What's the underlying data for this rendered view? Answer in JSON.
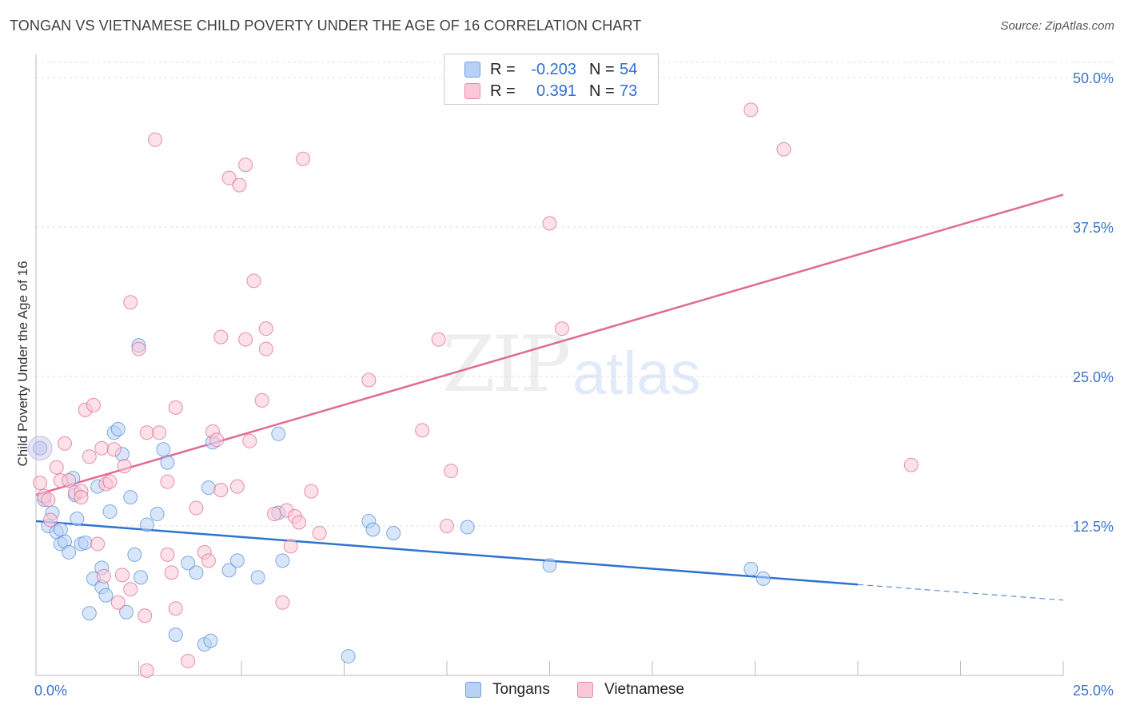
{
  "title": "TONGAN VS VIETNAMESE CHILD POVERTY UNDER THE AGE OF 16 CORRELATION CHART",
  "source": "Source: ZipAtlas.com",
  "watermark": {
    "part1": "ZIP",
    "part2": "atlas"
  },
  "legend": {
    "rows": [
      {
        "r_label": "R =",
        "r_value": "-0.203",
        "n_label": "N =",
        "n_value": "54",
        "fill": "#b8d2f5",
        "stroke": "#6f9fe0"
      },
      {
        "r_label": "R =",
        "r_value": "0.391",
        "n_label": "N =",
        "n_value": "73",
        "fill": "#f9c9d7",
        "stroke": "#e98aa8"
      }
    ]
  },
  "bottom_legend": {
    "tongans": "Tongans",
    "vietnamese": "Vietnamese"
  },
  "chart_data": {
    "type": "scatter",
    "xlabel": "",
    "ylabel": "Child Poverty Under the Age of 16",
    "xlim": [
      0,
      25
    ],
    "ylim": [
      0,
      50
    ],
    "x_tick_labels": [
      {
        "value": 0,
        "label": "0.0%"
      },
      {
        "value": 25,
        "label": "25.0%"
      }
    ],
    "y_tick_labels": [
      {
        "value": 12.5,
        "label": "12.5%"
      },
      {
        "value": 25,
        "label": "25.0%"
      },
      {
        "value": 37.5,
        "label": "37.5%"
      },
      {
        "value": 50,
        "label": "50.0%"
      }
    ],
    "grid": true,
    "legend_placement": "top-center",
    "series": [
      {
        "name": "Tongans",
        "color": "#5b8fd8",
        "fill": "#b8d2f5",
        "points": [
          [
            0.1,
            19.0
          ],
          [
            0.2,
            14.7
          ],
          [
            0.3,
            12.5
          ],
          [
            0.4,
            13.6
          ],
          [
            0.5,
            12.0
          ],
          [
            0.6,
            11.0
          ],
          [
            0.7,
            11.2
          ],
          [
            0.8,
            10.3
          ],
          [
            0.9,
            16.5
          ],
          [
            0.95,
            15.1
          ],
          [
            1.0,
            13.1
          ],
          [
            1.1,
            11.0
          ],
          [
            1.2,
            11.1
          ],
          [
            1.3,
            5.2
          ],
          [
            1.4,
            8.1
          ],
          [
            1.5,
            15.8
          ],
          [
            1.6,
            7.4
          ],
          [
            1.6,
            9.0
          ],
          [
            1.7,
            6.7
          ],
          [
            1.8,
            13.7
          ],
          [
            1.9,
            20.3
          ],
          [
            2.0,
            20.6
          ],
          [
            2.1,
            18.5
          ],
          [
            2.2,
            5.3
          ],
          [
            2.3,
            14.9
          ],
          [
            2.4,
            10.1
          ],
          [
            2.5,
            27.6
          ],
          [
            2.55,
            8.2
          ],
          [
            2.7,
            12.6
          ],
          [
            2.95,
            13.5
          ],
          [
            3.1,
            18.9
          ],
          [
            3.2,
            17.8
          ],
          [
            3.4,
            3.4
          ],
          [
            3.7,
            9.4
          ],
          [
            3.9,
            8.6
          ],
          [
            4.1,
            2.6
          ],
          [
            4.2,
            15.7
          ],
          [
            4.25,
            2.9
          ],
          [
            4.3,
            19.5
          ],
          [
            4.7,
            8.8
          ],
          [
            4.9,
            9.6
          ],
          [
            5.4,
            8.2
          ],
          [
            5.9,
            20.2
          ],
          [
            5.9,
            13.6
          ],
          [
            6.0,
            9.6
          ],
          [
            7.6,
            1.6
          ],
          [
            8.1,
            12.9
          ],
          [
            8.2,
            12.2
          ],
          [
            8.7,
            11.9
          ],
          [
            10.5,
            12.4
          ],
          [
            12.5,
            9.2
          ],
          [
            17.4,
            8.9
          ],
          [
            17.7,
            8.1
          ],
          [
            0.6,
            12.2
          ]
        ],
        "trend": {
          "x": [
            0,
            20
          ],
          "y": [
            12.9,
            7.6
          ],
          "dashed_to": [
            25,
            6.3
          ]
        }
      },
      {
        "name": "Vietnamese",
        "color": "#e06b94",
        "fill": "#f9c9d7",
        "points": [
          [
            0.1,
            16.1
          ],
          [
            0.2,
            15.0
          ],
          [
            0.3,
            14.7
          ],
          [
            0.35,
            13.0
          ],
          [
            0.5,
            17.4
          ],
          [
            0.6,
            16.3
          ],
          [
            0.7,
            19.4
          ],
          [
            0.8,
            16.3
          ],
          [
            0.95,
            15.3
          ],
          [
            1.1,
            15.4
          ],
          [
            1.1,
            14.9
          ],
          [
            1.2,
            22.2
          ],
          [
            1.3,
            18.3
          ],
          [
            1.4,
            22.6
          ],
          [
            1.5,
            11.0
          ],
          [
            1.6,
            19.0
          ],
          [
            1.65,
            8.3
          ],
          [
            1.7,
            16.0
          ],
          [
            1.8,
            16.2
          ],
          [
            1.9,
            18.9
          ],
          [
            2.0,
            6.1
          ],
          [
            2.1,
            8.4
          ],
          [
            2.15,
            17.5
          ],
          [
            2.3,
            7.2
          ],
          [
            2.3,
            31.2
          ],
          [
            2.5,
            27.3
          ],
          [
            2.65,
            5.0
          ],
          [
            2.7,
            0.4
          ],
          [
            2.7,
            20.3
          ],
          [
            2.9,
            44.8
          ],
          [
            3.0,
            20.3
          ],
          [
            3.2,
            10.1
          ],
          [
            3.2,
            16.2
          ],
          [
            3.3,
            8.6
          ],
          [
            3.4,
            22.4
          ],
          [
            3.4,
            5.6
          ],
          [
            3.7,
            1.2
          ],
          [
            3.9,
            14.0
          ],
          [
            4.1,
            10.3
          ],
          [
            4.2,
            9.6
          ],
          [
            4.3,
            20.4
          ],
          [
            4.4,
            19.7
          ],
          [
            4.5,
            15.5
          ],
          [
            4.5,
            28.3
          ],
          [
            4.7,
            41.6
          ],
          [
            4.9,
            15.8
          ],
          [
            4.95,
            41.0
          ],
          [
            5.1,
            42.7
          ],
          [
            5.1,
            28.1
          ],
          [
            5.2,
            19.6
          ],
          [
            5.3,
            33.0
          ],
          [
            5.5,
            23.0
          ],
          [
            5.6,
            29.0
          ],
          [
            5.6,
            27.3
          ],
          [
            5.8,
            13.5
          ],
          [
            6.0,
            6.1
          ],
          [
            6.1,
            13.8
          ],
          [
            6.2,
            10.8
          ],
          [
            6.3,
            13.3
          ],
          [
            6.4,
            12.8
          ],
          [
            6.5,
            43.2
          ],
          [
            6.7,
            15.4
          ],
          [
            6.9,
            11.9
          ],
          [
            8.1,
            24.7
          ],
          [
            9.4,
            20.5
          ],
          [
            9.8,
            28.1
          ],
          [
            10.0,
            12.5
          ],
          [
            10.1,
            17.1
          ],
          [
            12.5,
            37.8
          ],
          [
            12.8,
            29.0
          ],
          [
            17.4,
            47.3
          ],
          [
            18.2,
            44.0
          ],
          [
            21.3,
            17.6
          ]
        ],
        "trend": {
          "x": [
            0,
            25
          ],
          "y": [
            15.1,
            40.2
          ]
        }
      }
    ]
  }
}
